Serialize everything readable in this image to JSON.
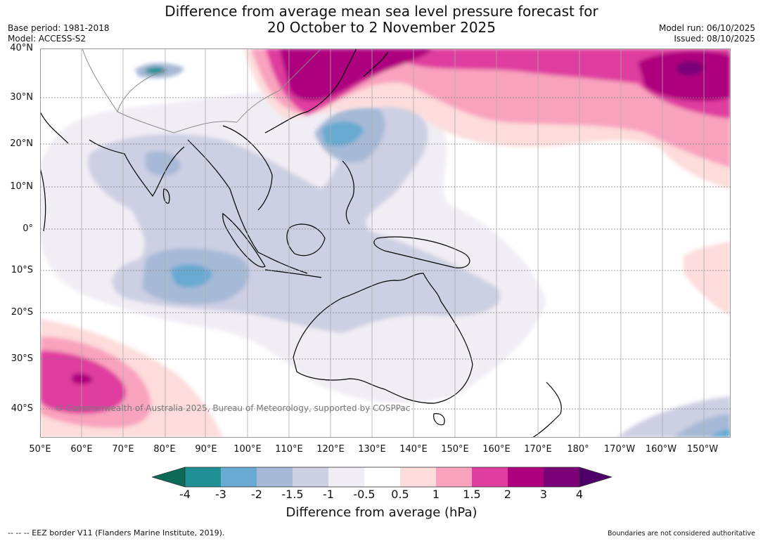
{
  "header": {
    "title_line1": "Difference from average mean sea level pressure forecast for",
    "title_line2": "20 October to 2 November 2025",
    "base_period": "Base period: 1981-2018",
    "model": "Model: ACCESS-S2",
    "model_run": "Model run: 06/10/2025",
    "issued": "Issued: 08/10/2025"
  },
  "map": {
    "copyright": "© Commonwealth of Australia 2025, Bureau of Meteorology, supported by COSPPac",
    "lat_labels": [
      "40°N",
      "30°N",
      "20°N",
      "10°N",
      "0°",
      "10°S",
      "20°S",
      "30°S",
      "40°S"
    ],
    "lon_labels": [
      "50°E",
      "60°E",
      "70°E",
      "80°E",
      "90°E",
      "100°E",
      "110°E",
      "120°E",
      "130°E",
      "140°E",
      "150°E",
      "160°E",
      "170°E",
      "180°",
      "170°W",
      "160°W",
      "150°W"
    ]
  },
  "colorbar": {
    "title": "Difference from average (hPa)",
    "tick_labels": [
      "-4",
      "-3",
      "-2",
      "-1.5",
      "-1",
      "-0.5",
      "0.5",
      "1",
      "1.5",
      "2",
      "3",
      "4"
    ],
    "colors": {
      "below_min": "#0b6a58",
      "neg_4_3": "#1f9196",
      "neg_3_2": "#68aad2",
      "neg_2_15": "#a6b9d6",
      "neg_15_1": "#cdcfe3",
      "neg_1_05": "#f1edf4",
      "neutral": "#ffffff",
      "pos_05_1": "#fddcdb",
      "pos_1_15": "#f9a2bd",
      "pos_15_2": "#df3d9f",
      "pos_2_3": "#ae017e",
      "pos_3_4": "#7a0177",
      "above_max": "#4d0068"
    }
  },
  "footer": {
    "eez_note": "--  --  -- EEZ border V11 (Flanders Marine Institute, 2019).",
    "boundary_note": "Boundaries are not considered authoritative"
  }
}
